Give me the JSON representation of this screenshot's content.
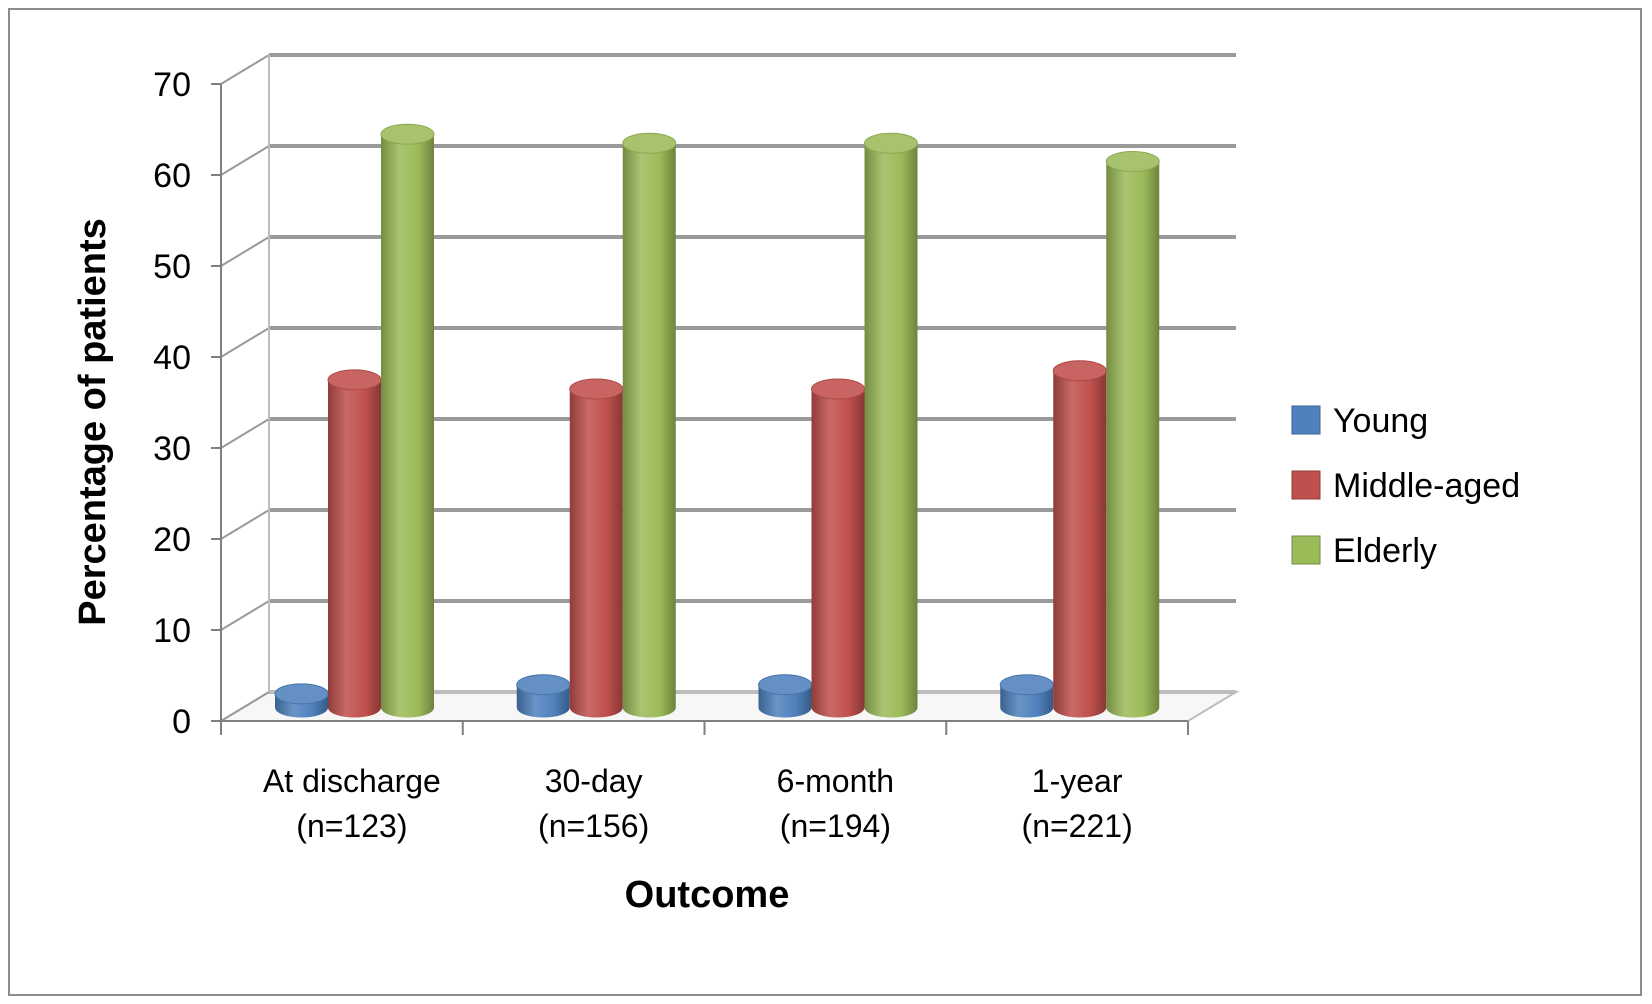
{
  "chart_data": {
    "type": "bar",
    "style": "3d-cylinder",
    "xlabel": "Outcome",
    "ylabel": "Percentage of patients",
    "ylim": [
      0,
      70
    ],
    "yticks": [
      0,
      10,
      20,
      30,
      40,
      50,
      60,
      70
    ],
    "grid": true,
    "legend_position": "right",
    "categories": [
      {
        "line1": "At discharge",
        "line2": "(n=123)"
      },
      {
        "line1": "30-day",
        "line2": "(n=156)"
      },
      {
        "line1": "6-month",
        "line2": "(n=194)"
      },
      {
        "line1": "1-year",
        "line2": "(n=221)"
      }
    ],
    "series": [
      {
        "name": "Young",
        "color": "#4f81bd",
        "values": [
          1.5,
          2.5,
          2.5,
          2.5
        ]
      },
      {
        "name": "Middle-aged",
        "color": "#c0504d",
        "values": [
          36,
          35,
          35,
          37
        ]
      },
      {
        "name": "Elderly",
        "color": "#9bbb59",
        "values": [
          63,
          62,
          62,
          60
        ]
      }
    ]
  }
}
